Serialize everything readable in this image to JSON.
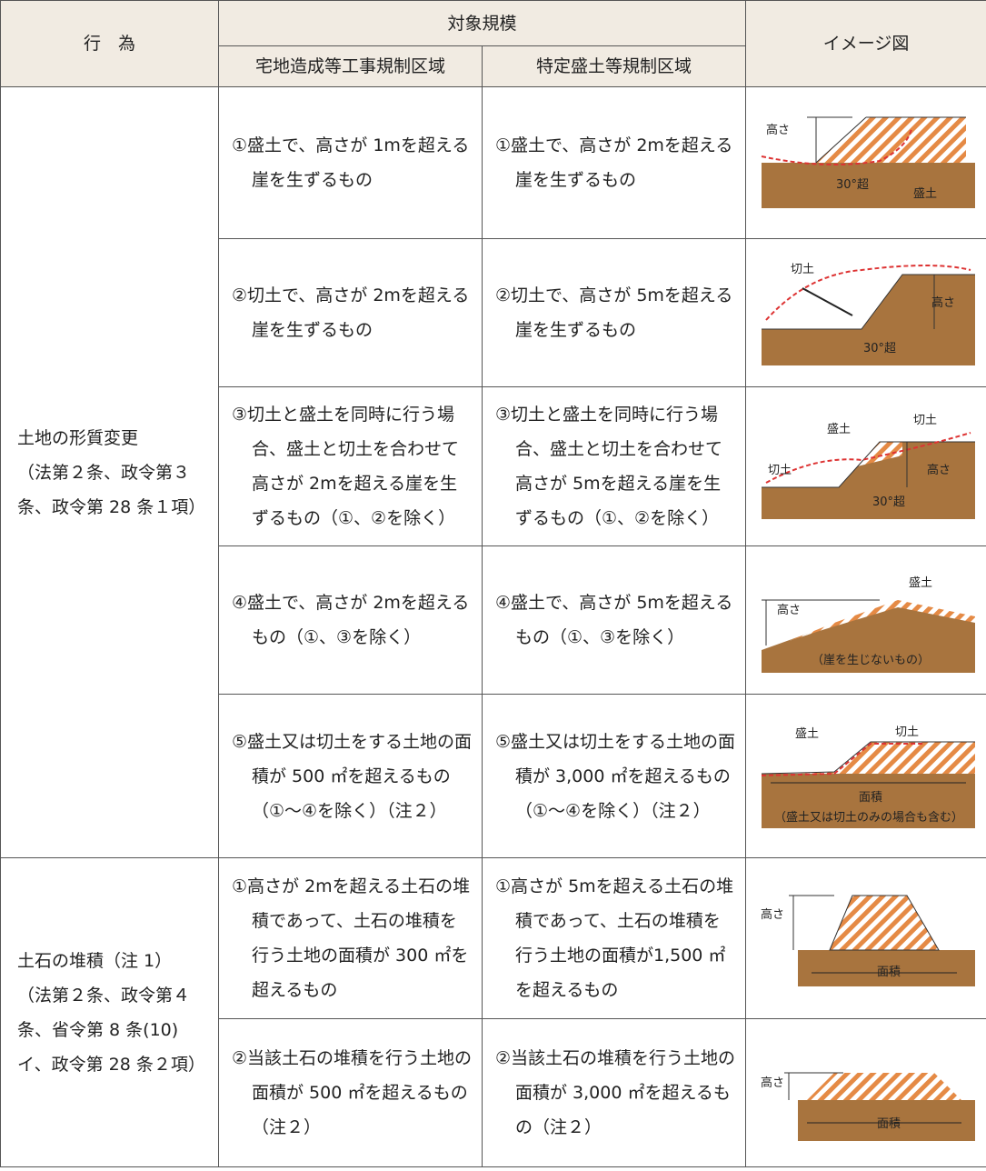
{
  "header": {
    "action": "行　為",
    "scope": "対象規模",
    "zone1": "宅地造成等工事規制区域",
    "zone2": "特定盛土等規制区域",
    "image": "イメージ図"
  },
  "groups": [
    {
      "label": "土地の形質変更",
      "ref": "（法第２条、政令第３条、政令第 28 条１項）",
      "rows": [
        {
          "zone1": "①盛土で、高さが 1mを超える崖を生ずるもの",
          "zone2": "①盛土で、高さが 2mを超える崖を生ずるもの",
          "image": [
            "高さ",
            "30°超",
            "盛土"
          ]
        },
        {
          "zone1": "②切土で、高さが 2mを超える崖を生ずるもの",
          "zone2": "②切土で、高さが 5mを超える崖を生ずるもの",
          "image": [
            "切土",
            "高さ",
            "30°超"
          ]
        },
        {
          "zone1": "③切土と盛土を同時に行う場合、盛土と切土を合わせて高さが 2mを超える崖を生ずるもの（①、②を除く）",
          "zone2": "③切土と盛土を同時に行う場合、盛土と切土を合わせて高さが 5mを超える崖を生ずるもの（①、②を除く）",
          "image": [
            "盛土",
            "切土",
            "切土",
            "高さ",
            "30°超"
          ]
        },
        {
          "zone1": "④盛土で、高さが 2mを超えるもの（①、③を除く）",
          "zone2": "④盛土で、高さが 5mを超えるもの（①、③を除く）",
          "image": [
            "盛土",
            "高さ",
            "（崖を生じないもの）"
          ]
        },
        {
          "zone1": "⑤盛土又は切土をする土地の面積が 500 ㎡を超えるもの（①～④を除く）（注２）",
          "zone2": "⑤盛土又は切土をする土地の面積が 3,000 ㎡を超えるもの（①～④を除く）（注２）",
          "image": [
            "盛土",
            "切土",
            "面積",
            "（盛土又は切土のみの場合も含む）"
          ]
        }
      ]
    },
    {
      "label": "土石の堆積（注 1）",
      "ref": "（法第２条、政令第４条、省令第 8 条(10)イ、政令第 28 条２項）",
      "rows": [
        {
          "zone1": "①高さが 2mを超える土石の堆積であって、土石の堆積を行う土地の面積が 300 ㎡を超えるもの",
          "zone2": "①高さが 5mを超える土石の堆積であって、土石の堆積を行う土地の面積が1,500 ㎡を超えるもの",
          "image": [
            "高さ",
            "面積"
          ]
        },
        {
          "zone1": "②当該土石の堆積を行う土地の面積が 500 ㎡を超えるもの（注２）",
          "zone2": "②当該土石の堆積を行う土地の面積が 3,000 ㎡を超えるもの（注２）",
          "image": [
            "高さ",
            "面積"
          ]
        }
      ]
    }
  ]
}
